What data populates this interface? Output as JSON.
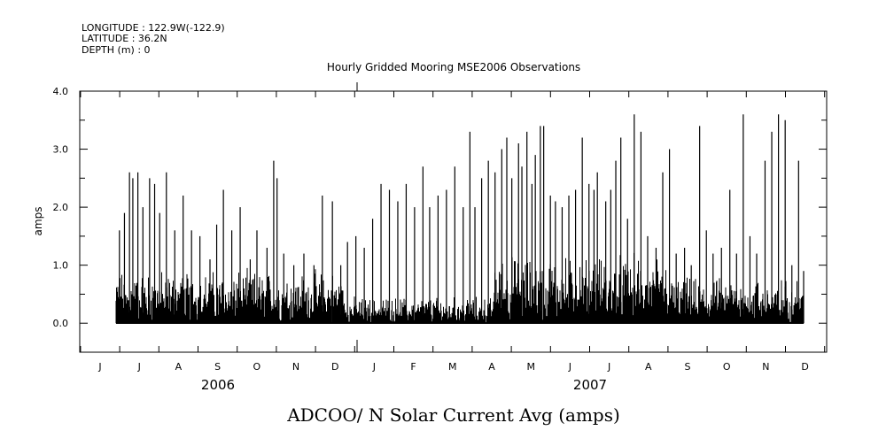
{
  "header": {
    "longitude": "LONGITUDE : 122.9W(-122.9)",
    "latitude": "LATITUDE : 36.2N",
    "depth": "DEPTH (m) : 0"
  },
  "chart_data": {
    "type": "line",
    "title": "Hourly Gridded Mooring MSE2006 Observations",
    "xlabel": "ADCOO/ N Solar Current Avg (amps)",
    "ylabel": "amps",
    "ylim": [
      -0.5,
      4.0
    ],
    "y_ticks": [
      "4.0",
      "3.0",
      "2.0",
      "1.0",
      "0.0"
    ],
    "y_tick_values": [
      4.0,
      3.0,
      2.0,
      1.0,
      0.0
    ],
    "x_month_labels": [
      "J",
      "J",
      "A",
      "S",
      "O",
      "N",
      "D",
      "J",
      "F",
      "M",
      "A",
      "M",
      "J",
      "J",
      "A",
      "S",
      "O",
      "N",
      "D"
    ],
    "x_year_labels": [
      "2006",
      "2007"
    ],
    "grid": false,
    "series_note": "hourly values, approximately 0 to 3.7 amps from mid-June 2006 to mid-December 2007",
    "series": [
      {
        "name": "N Solar Current Avg",
        "peaks": [
          [
            0.2,
            1.6
          ],
          [
            0.5,
            1.9
          ],
          [
            0.8,
            2.6
          ],
          [
            1.0,
            2.5
          ],
          [
            1.3,
            2.6
          ],
          [
            1.6,
            2.0
          ],
          [
            2.0,
            2.5
          ],
          [
            2.3,
            2.4
          ],
          [
            2.6,
            1.9
          ],
          [
            3.0,
            2.6
          ],
          [
            3.5,
            1.6
          ],
          [
            4.0,
            2.2
          ],
          [
            4.5,
            1.6
          ],
          [
            5.0,
            1.5
          ],
          [
            5.6,
            1.1
          ],
          [
            6.0,
            1.7
          ],
          [
            6.4,
            2.3
          ],
          [
            6.9,
            1.6
          ],
          [
            7.4,
            2.0
          ],
          [
            8.0,
            1.1
          ],
          [
            8.4,
            1.6
          ],
          [
            9.0,
            1.3
          ],
          [
            9.4,
            2.8
          ],
          [
            9.6,
            2.5
          ],
          [
            10.0,
            1.2
          ],
          [
            10.6,
            1.0
          ],
          [
            11.2,
            1.2
          ],
          [
            11.8,
            1.0
          ],
          [
            12.3,
            2.2
          ],
          [
            12.9,
            2.1
          ],
          [
            13.4,
            1.0
          ],
          [
            13.8,
            1.4
          ],
          [
            14.3,
            1.5
          ],
          [
            14.8,
            1.3
          ],
          [
            15.3,
            1.8
          ],
          [
            15.8,
            2.4
          ],
          [
            16.3,
            2.3
          ],
          [
            16.8,
            2.1
          ],
          [
            17.3,
            2.4
          ],
          [
            17.8,
            2.0
          ],
          [
            18.3,
            2.7
          ],
          [
            18.7,
            2.0
          ],
          [
            19.2,
            2.2
          ],
          [
            19.7,
            2.3
          ],
          [
            20.2,
            2.7
          ],
          [
            20.7,
            2.0
          ],
          [
            21.1,
            3.3
          ],
          [
            21.4,
            2.0
          ],
          [
            21.8,
            2.5
          ],
          [
            22.2,
            2.8
          ],
          [
            22.6,
            2.6
          ],
          [
            23.0,
            3.0
          ],
          [
            23.3,
            3.2
          ],
          [
            23.6,
            2.5
          ],
          [
            24.0,
            3.1
          ],
          [
            24.2,
            2.7
          ],
          [
            24.5,
            3.3
          ],
          [
            24.8,
            2.4
          ],
          [
            25.0,
            2.9
          ],
          [
            25.3,
            3.4
          ],
          [
            25.5,
            3.4
          ],
          [
            25.9,
            2.2
          ],
          [
            26.2,
            2.1
          ],
          [
            26.6,
            2.0
          ],
          [
            27.0,
            2.2
          ],
          [
            27.4,
            2.3
          ],
          [
            27.8,
            3.2
          ],
          [
            28.2,
            2.4
          ],
          [
            28.5,
            2.3
          ],
          [
            28.7,
            2.6
          ],
          [
            29.2,
            2.1
          ],
          [
            29.5,
            2.3
          ],
          [
            29.8,
            2.8
          ],
          [
            30.1,
            3.2
          ],
          [
            30.5,
            1.8
          ],
          [
            30.9,
            3.6
          ],
          [
            31.3,
            3.3
          ],
          [
            31.7,
            1.5
          ],
          [
            32.2,
            1.3
          ],
          [
            32.6,
            2.6
          ],
          [
            33.0,
            3.0
          ],
          [
            33.4,
            1.2
          ],
          [
            33.9,
            1.3
          ],
          [
            34.3,
            1.0
          ],
          [
            34.8,
            3.4
          ],
          [
            35.2,
            1.6
          ],
          [
            35.6,
            1.2
          ],
          [
            36.1,
            1.3
          ],
          [
            36.6,
            2.3
          ],
          [
            37.0,
            1.2
          ],
          [
            37.4,
            3.6
          ],
          [
            37.8,
            1.5
          ],
          [
            38.2,
            1.2
          ],
          [
            38.7,
            2.8
          ],
          [
            39.1,
            3.3
          ],
          [
            39.5,
            3.6
          ],
          [
            39.9,
            3.5
          ],
          [
            40.3,
            1.0
          ],
          [
            40.7,
            2.8
          ],
          [
            41.0,
            0.9
          ]
        ]
      }
    ]
  }
}
